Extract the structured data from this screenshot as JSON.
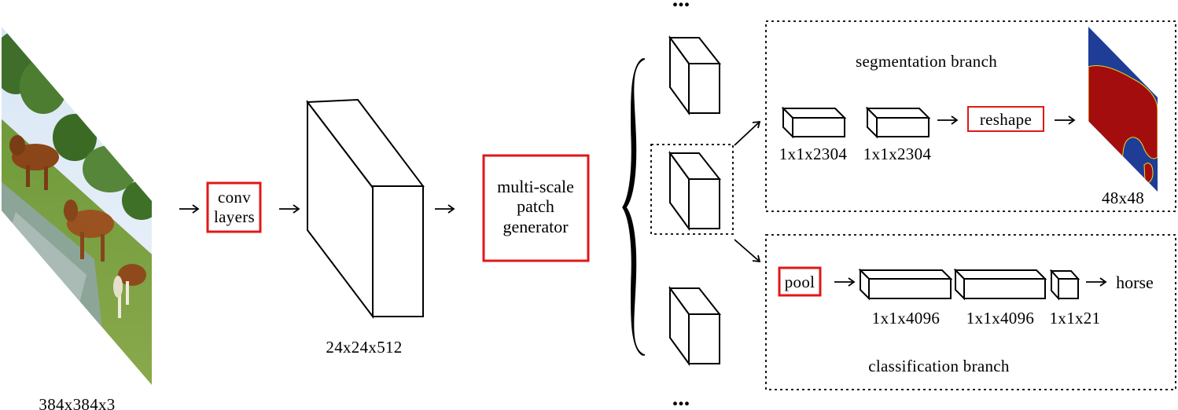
{
  "labels": {
    "input_size": "384x384x3",
    "conv_line1": "conv",
    "conv_line2": "layers",
    "feature_size": "24x24x512",
    "mspg_line1": "multi-scale",
    "mspg_line2": "patch",
    "mspg_line3": "generator",
    "ellipsis_top": "...",
    "ellipsis_bottom": "...",
    "seg_branch": "segmentation branch",
    "seg_fc1": "1x1x2304",
    "seg_fc2": "1x1x2304",
    "reshape": "reshape",
    "mask_size": "48x48",
    "pool": "pool",
    "cls_fc1": "1x1x4096",
    "cls_fc2": "1x1x4096",
    "cls_out": "1x1x21",
    "class_name": "horse",
    "cls_branch": "classification branch"
  },
  "colors": {
    "highlight": "#e01818",
    "mask_bg": "#1f3c96",
    "mask_fg": "#a40d0d",
    "stroke": "#000000"
  }
}
